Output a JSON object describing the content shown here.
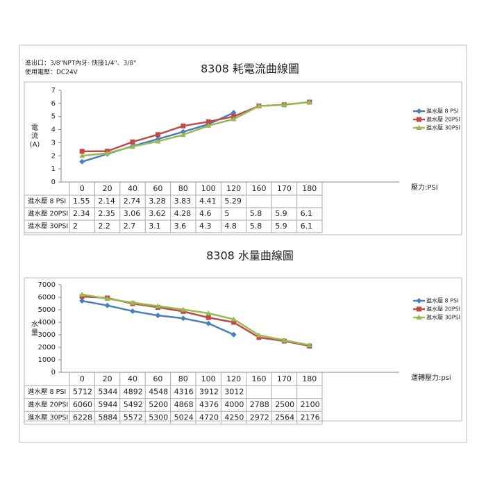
{
  "header": {
    "lines": [
      "進出口：3/8\"NPT內牙‧ 快接1/4\"、3/8\"",
      "使用電壓：DC24V"
    ]
  },
  "chart_data": [
    {
      "type": "line",
      "title": "8308 耗電流曲線圖",
      "y_label_lines": [
        "電",
        "流",
        "(A)"
      ],
      "x_label": "壓力:PSI",
      "categories": [
        "0",
        "20",
        "40",
        "60",
        "80",
        "100",
        "120",
        "160",
        "170",
        "180"
      ],
      "series": [
        {
          "name": "進水壓 8 PSI",
          "color": "#4a7ebb",
          "marker": "diamond",
          "values": [
            1.55,
            2.14,
            2.74,
            3.28,
            3.83,
            4.41,
            5.29,
            null,
            null,
            null
          ]
        },
        {
          "name": "進水壓 20PSI",
          "color": "#be4b48",
          "marker": "square",
          "values": [
            2.34,
            2.35,
            3.06,
            3.62,
            4.28,
            4.6,
            5,
            5.8,
            5.9,
            6.1
          ]
        },
        {
          "name": "進水壓 30PSI",
          "color": "#98b954",
          "marker": "triangle",
          "values": [
            2,
            2.2,
            2.7,
            3.1,
            3.6,
            4.3,
            4.8,
            5.8,
            5.9,
            6.1
          ]
        }
      ],
      "ylim": [
        0,
        7
      ],
      "yticks": [
        0,
        1,
        2,
        3,
        4,
        5,
        6,
        7
      ],
      "legend": "right"
    },
    {
      "type": "line",
      "title": "8308 水量曲線圖",
      "y_label_lines": [
        "水",
        "量"
      ],
      "x_label": "運轉壓力:psi",
      "categories": [
        "0",
        "20",
        "40",
        "60",
        "80",
        "100",
        "120",
        "160",
        "170",
        "180"
      ],
      "series": [
        {
          "name": "進水壓 8 PSI",
          "color": "#4a7ebb",
          "marker": "diamond",
          "values": [
            5712,
            5344,
            4892,
            4548,
            4316,
            3912,
            3012,
            null,
            null,
            null
          ]
        },
        {
          "name": "進水壓 20PSI",
          "color": "#be4b48",
          "marker": "square",
          "values": [
            6060,
            5944,
            5492,
            5200,
            4868,
            4376,
            4000,
            2788,
            2500,
            2100
          ]
        },
        {
          "name": "進水壓 30PSI",
          "color": "#98b954",
          "marker": "triangle",
          "values": [
            6228,
            5884,
            5572,
            5300,
            5024,
            4720,
            4250,
            2972,
            2564,
            2176
          ]
        }
      ],
      "ylim": [
        0,
        7000
      ],
      "yticks": [
        0,
        1000,
        2000,
        3000,
        4000,
        5000,
        6000,
        7000
      ],
      "legend": "right"
    }
  ]
}
